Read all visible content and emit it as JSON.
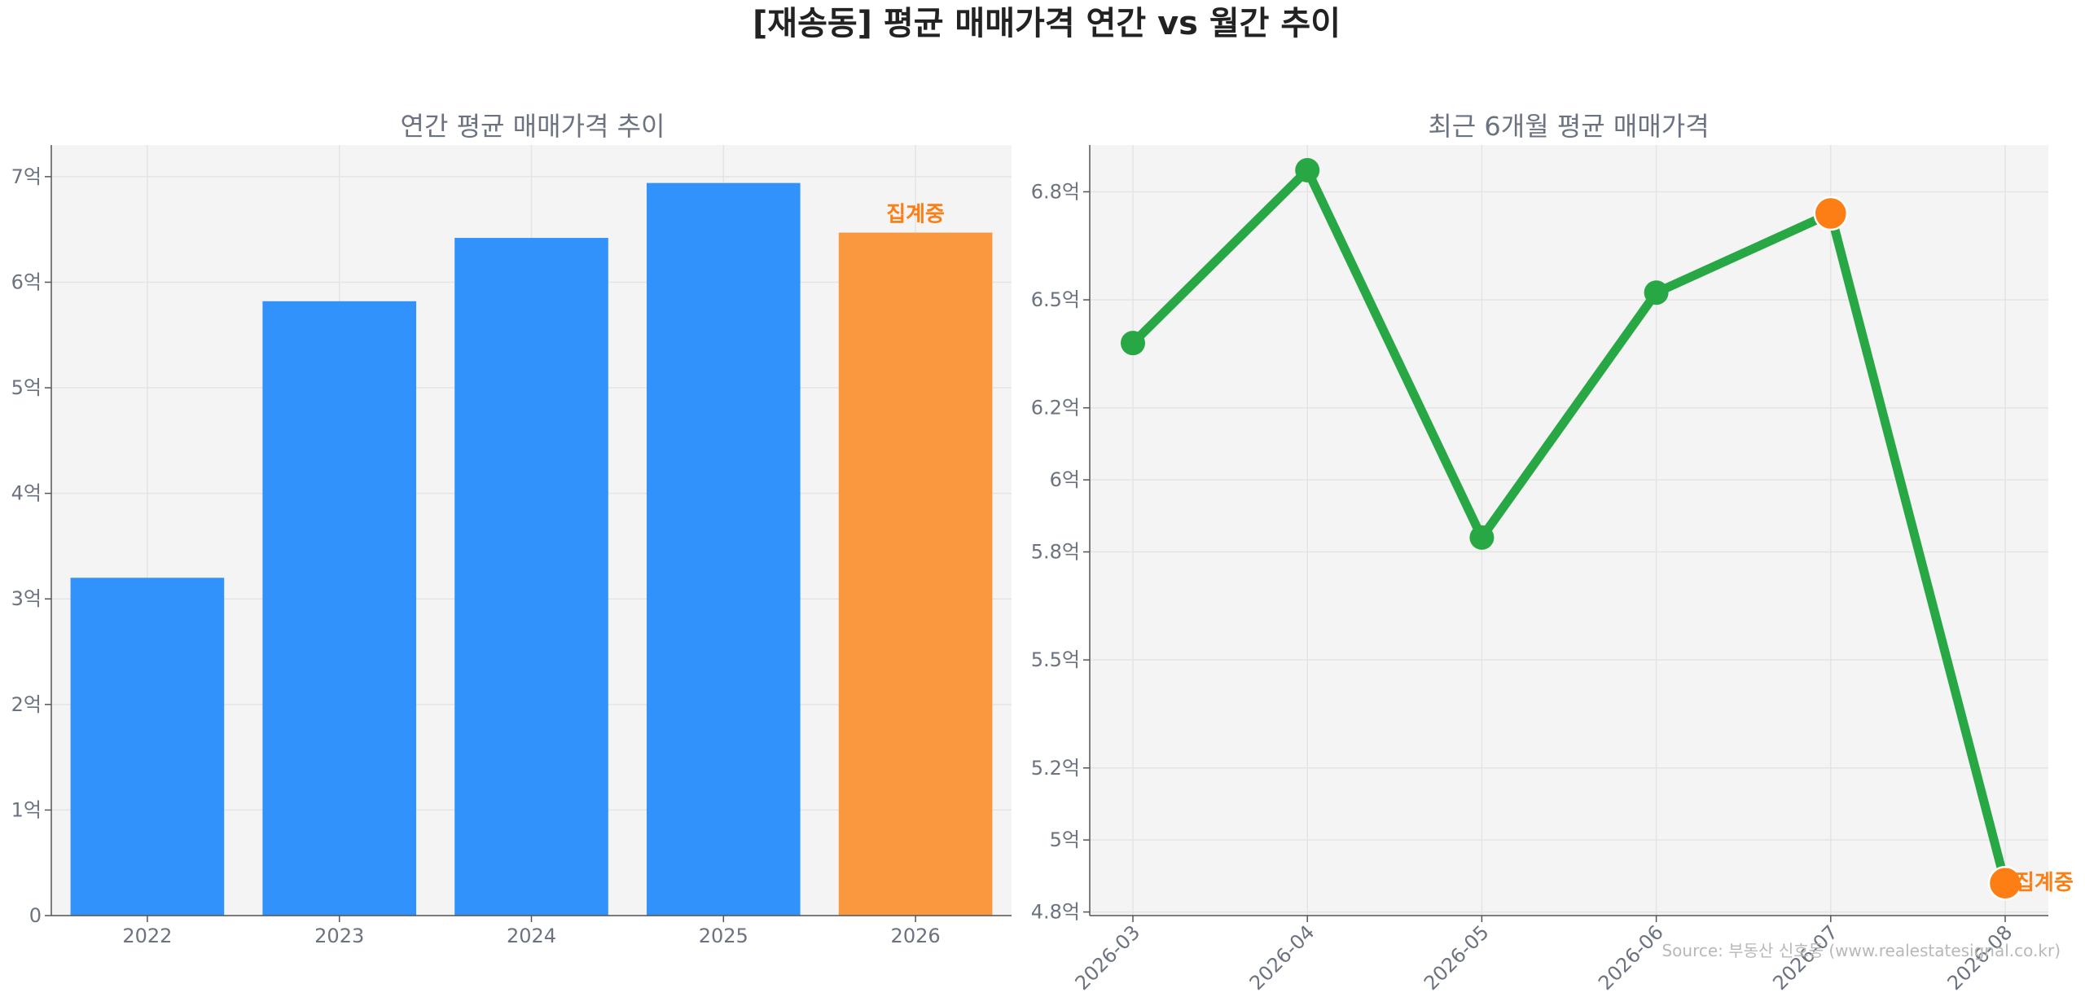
{
  "figure": {
    "title": "[재송동] 평균 매매가격 연간 vs 월간 추이",
    "source": "Source: 부동산 신호등 (www.realestatesignal.co.kr)"
  },
  "colors": {
    "bar": "#3292fb",
    "highlight": "#fa9840",
    "line": "#28a745",
    "line_highlight": "#fd7e14",
    "axes_bg": "#f4f4f4",
    "grid": "#e4e4e4"
  },
  "chart_data": [
    {
      "type": "bar",
      "title": "연간 평균 매매가격 추이",
      "categories": [
        "2022",
        "2023",
        "2024",
        "2025",
        "2026"
      ],
      "values": [
        3.2,
        5.82,
        6.42,
        6.94,
        6.47
      ],
      "ylim": [
        0,
        7.3
      ],
      "yticks": [
        0,
        1,
        2,
        3,
        4,
        5,
        6,
        7
      ],
      "ytick_labels": [
        "0",
        "1억",
        "2억",
        "3억",
        "4억",
        "5억",
        "6억",
        "7억"
      ],
      "highlight_index": 4,
      "annotation": "집계중",
      "grid": true
    },
    {
      "type": "line",
      "title": "최근 6개월 평균 매매가격",
      "x": [
        "2026-03",
        "2026-04",
        "2026-05",
        "2026-06",
        "2026-07",
        "2026-08"
      ],
      "values": [
        6.38,
        6.86,
        5.84,
        6.52,
        6.74,
        4.88
      ],
      "ylim": [
        4.79,
        6.93
      ],
      "yticks": [
        4.8,
        5.0,
        5.2,
        5.5,
        5.8,
        6.0,
        6.2,
        6.5,
        6.8
      ],
      "ytick_labels": [
        "4.8억",
        "5억",
        "5.2억",
        "5.5억",
        "5.8억",
        "6억",
        "6.2억",
        "6.5억",
        "6.8억"
      ],
      "highlight_indices": [
        4,
        5
      ],
      "annotation": "집계중",
      "grid": true
    }
  ]
}
